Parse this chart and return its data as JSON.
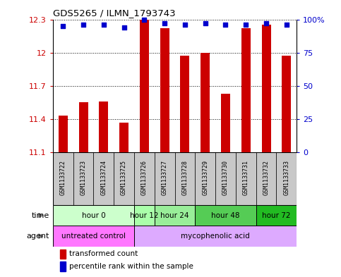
{
  "title": "GDS5265 / ILMN_1793743",
  "samples": [
    "GSM1133722",
    "GSM1133723",
    "GSM1133724",
    "GSM1133725",
    "GSM1133726",
    "GSM1133727",
    "GSM1133728",
    "GSM1133729",
    "GSM1133730",
    "GSM1133731",
    "GSM1133732",
    "GSM1133733"
  ],
  "bar_values": [
    11.43,
    11.55,
    11.56,
    11.37,
    12.3,
    12.22,
    11.97,
    12.0,
    11.63,
    12.22,
    12.25,
    11.97
  ],
  "percentile_values": [
    95,
    96,
    96,
    94,
    100,
    97,
    96,
    97,
    96,
    96,
    97,
    96
  ],
  "bar_color": "#cc0000",
  "dot_color": "#0000cc",
  "ymin": 11.1,
  "ymax": 12.3,
  "yticks": [
    11.1,
    11.4,
    11.7,
    12.0,
    12.3
  ],
  "ytick_labels": [
    "11.1",
    "11.4",
    "11.7",
    "12",
    "12.3"
  ],
  "right_yticks": [
    0,
    25,
    50,
    75,
    100
  ],
  "right_ytick_labels": [
    "0",
    "25",
    "50",
    "75",
    "100%"
  ],
  "time_groups": [
    {
      "label": "hour 0",
      "start": 0,
      "end": 3,
      "color": "#ccffcc"
    },
    {
      "label": "hour 12",
      "start": 4,
      "end": 4,
      "color": "#aaffaa"
    },
    {
      "label": "hour 24",
      "start": 5,
      "end": 6,
      "color": "#99ee99"
    },
    {
      "label": "hour 48",
      "start": 7,
      "end": 9,
      "color": "#55cc55"
    },
    {
      "label": "hour 72",
      "start": 10,
      "end": 11,
      "color": "#22bb22"
    }
  ],
  "agent_groups": [
    {
      "label": "untreated control",
      "start": 0,
      "end": 3,
      "color": "#ff77ff"
    },
    {
      "label": "mycophenolic acid",
      "start": 4,
      "end": 11,
      "color": "#ddaaff"
    }
  ],
  "bar_bottom": 11.1,
  "sample_box_color": "#c8c8c8",
  "legend_items": [
    {
      "color": "#cc0000",
      "label": "transformed count"
    },
    {
      "color": "#0000cc",
      "label": "percentile rank within the sample"
    }
  ]
}
